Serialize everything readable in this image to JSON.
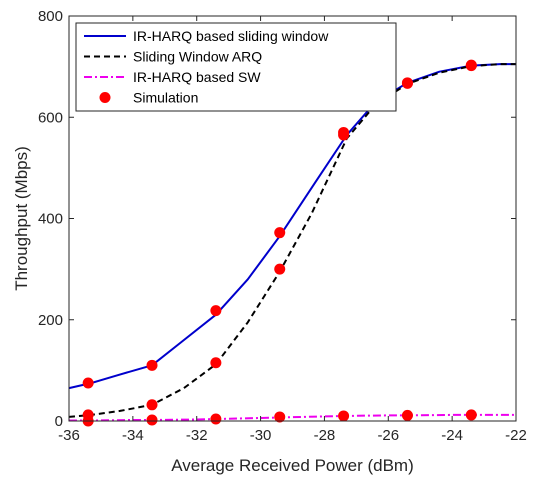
{
  "chart_data": {
    "type": "line",
    "xlabel": "Average Received Power (dBm)",
    "ylabel": "Throughput (Mbps)",
    "xlim": [
      -36,
      -22
    ],
    "ylim": [
      0,
      800
    ],
    "xticks": [
      -36,
      -34,
      -32,
      -30,
      -28,
      -26,
      -24,
      -22
    ],
    "yticks": [
      0,
      200,
      400,
      600,
      800
    ],
    "grid": false,
    "legend_position": "top-left",
    "series": [
      {
        "name": "IR-HARQ based sliding window",
        "style": "solid",
        "color": "#0000cc",
        "x": [
          -36,
          -35.3,
          -34.5,
          -33.4,
          -32.5,
          -31.4,
          -30.4,
          -29.4,
          -28.3,
          -27.3,
          -26.4,
          -25.4,
          -24.4,
          -23.4,
          -22.5,
          -22
        ],
        "y": [
          65,
          75,
          90,
          110,
          155,
          210,
          280,
          365,
          470,
          565,
          630,
          668,
          690,
          702,
          705,
          705
        ]
      },
      {
        "name": "Sliding Window ARQ",
        "style": "dashed",
        "color": "#000000",
        "x": [
          -36,
          -35.3,
          -34.4,
          -33.4,
          -32.4,
          -31.4,
          -30.4,
          -29.4,
          -28.4,
          -27.3,
          -26.4,
          -25.4,
          -24.4,
          -23.4,
          -22.5,
          -22
        ],
        "y": [
          8,
          12,
          20,
          32,
          65,
          112,
          195,
          295,
          410,
          558,
          625,
          666,
          688,
          701,
          705,
          705
        ]
      },
      {
        "name": "IR-HARQ based SW",
        "style": "dash-dot",
        "color": "#ee00ee",
        "x": [
          -36,
          -35.3,
          -34,
          -33.4,
          -32,
          -31.4,
          -30,
          -29.4,
          -28,
          -27.3,
          -26,
          -25.4,
          -24,
          -23.4,
          -22
        ],
        "y": [
          1,
          1,
          2,
          2,
          3,
          4,
          6,
          7,
          9,
          10,
          11,
          11,
          12,
          12,
          12
        ]
      }
    ],
    "simulation": {
      "name": "Simulation",
      "color": "#ff0000",
      "points": [
        [
          -35.4,
          75
        ],
        [
          -35.4,
          12
        ],
        [
          -35.4,
          0
        ],
        [
          -33.4,
          110
        ],
        [
          -33.4,
          32
        ],
        [
          -33.4,
          2
        ],
        [
          -31.4,
          218
        ],
        [
          -31.4,
          115
        ],
        [
          -31.4,
          4
        ],
        [
          -29.4,
          372
        ],
        [
          -29.4,
          300
        ],
        [
          -29.4,
          8
        ],
        [
          -27.4,
          570
        ],
        [
          -27.4,
          565
        ],
        [
          -27.4,
          10
        ],
        [
          -25.4,
          668
        ],
        [
          -25.4,
          667
        ],
        [
          -25.4,
          11
        ],
        [
          -23.4,
          703
        ],
        [
          -23.4,
          702
        ],
        [
          -23.4,
          12
        ]
      ]
    }
  }
}
